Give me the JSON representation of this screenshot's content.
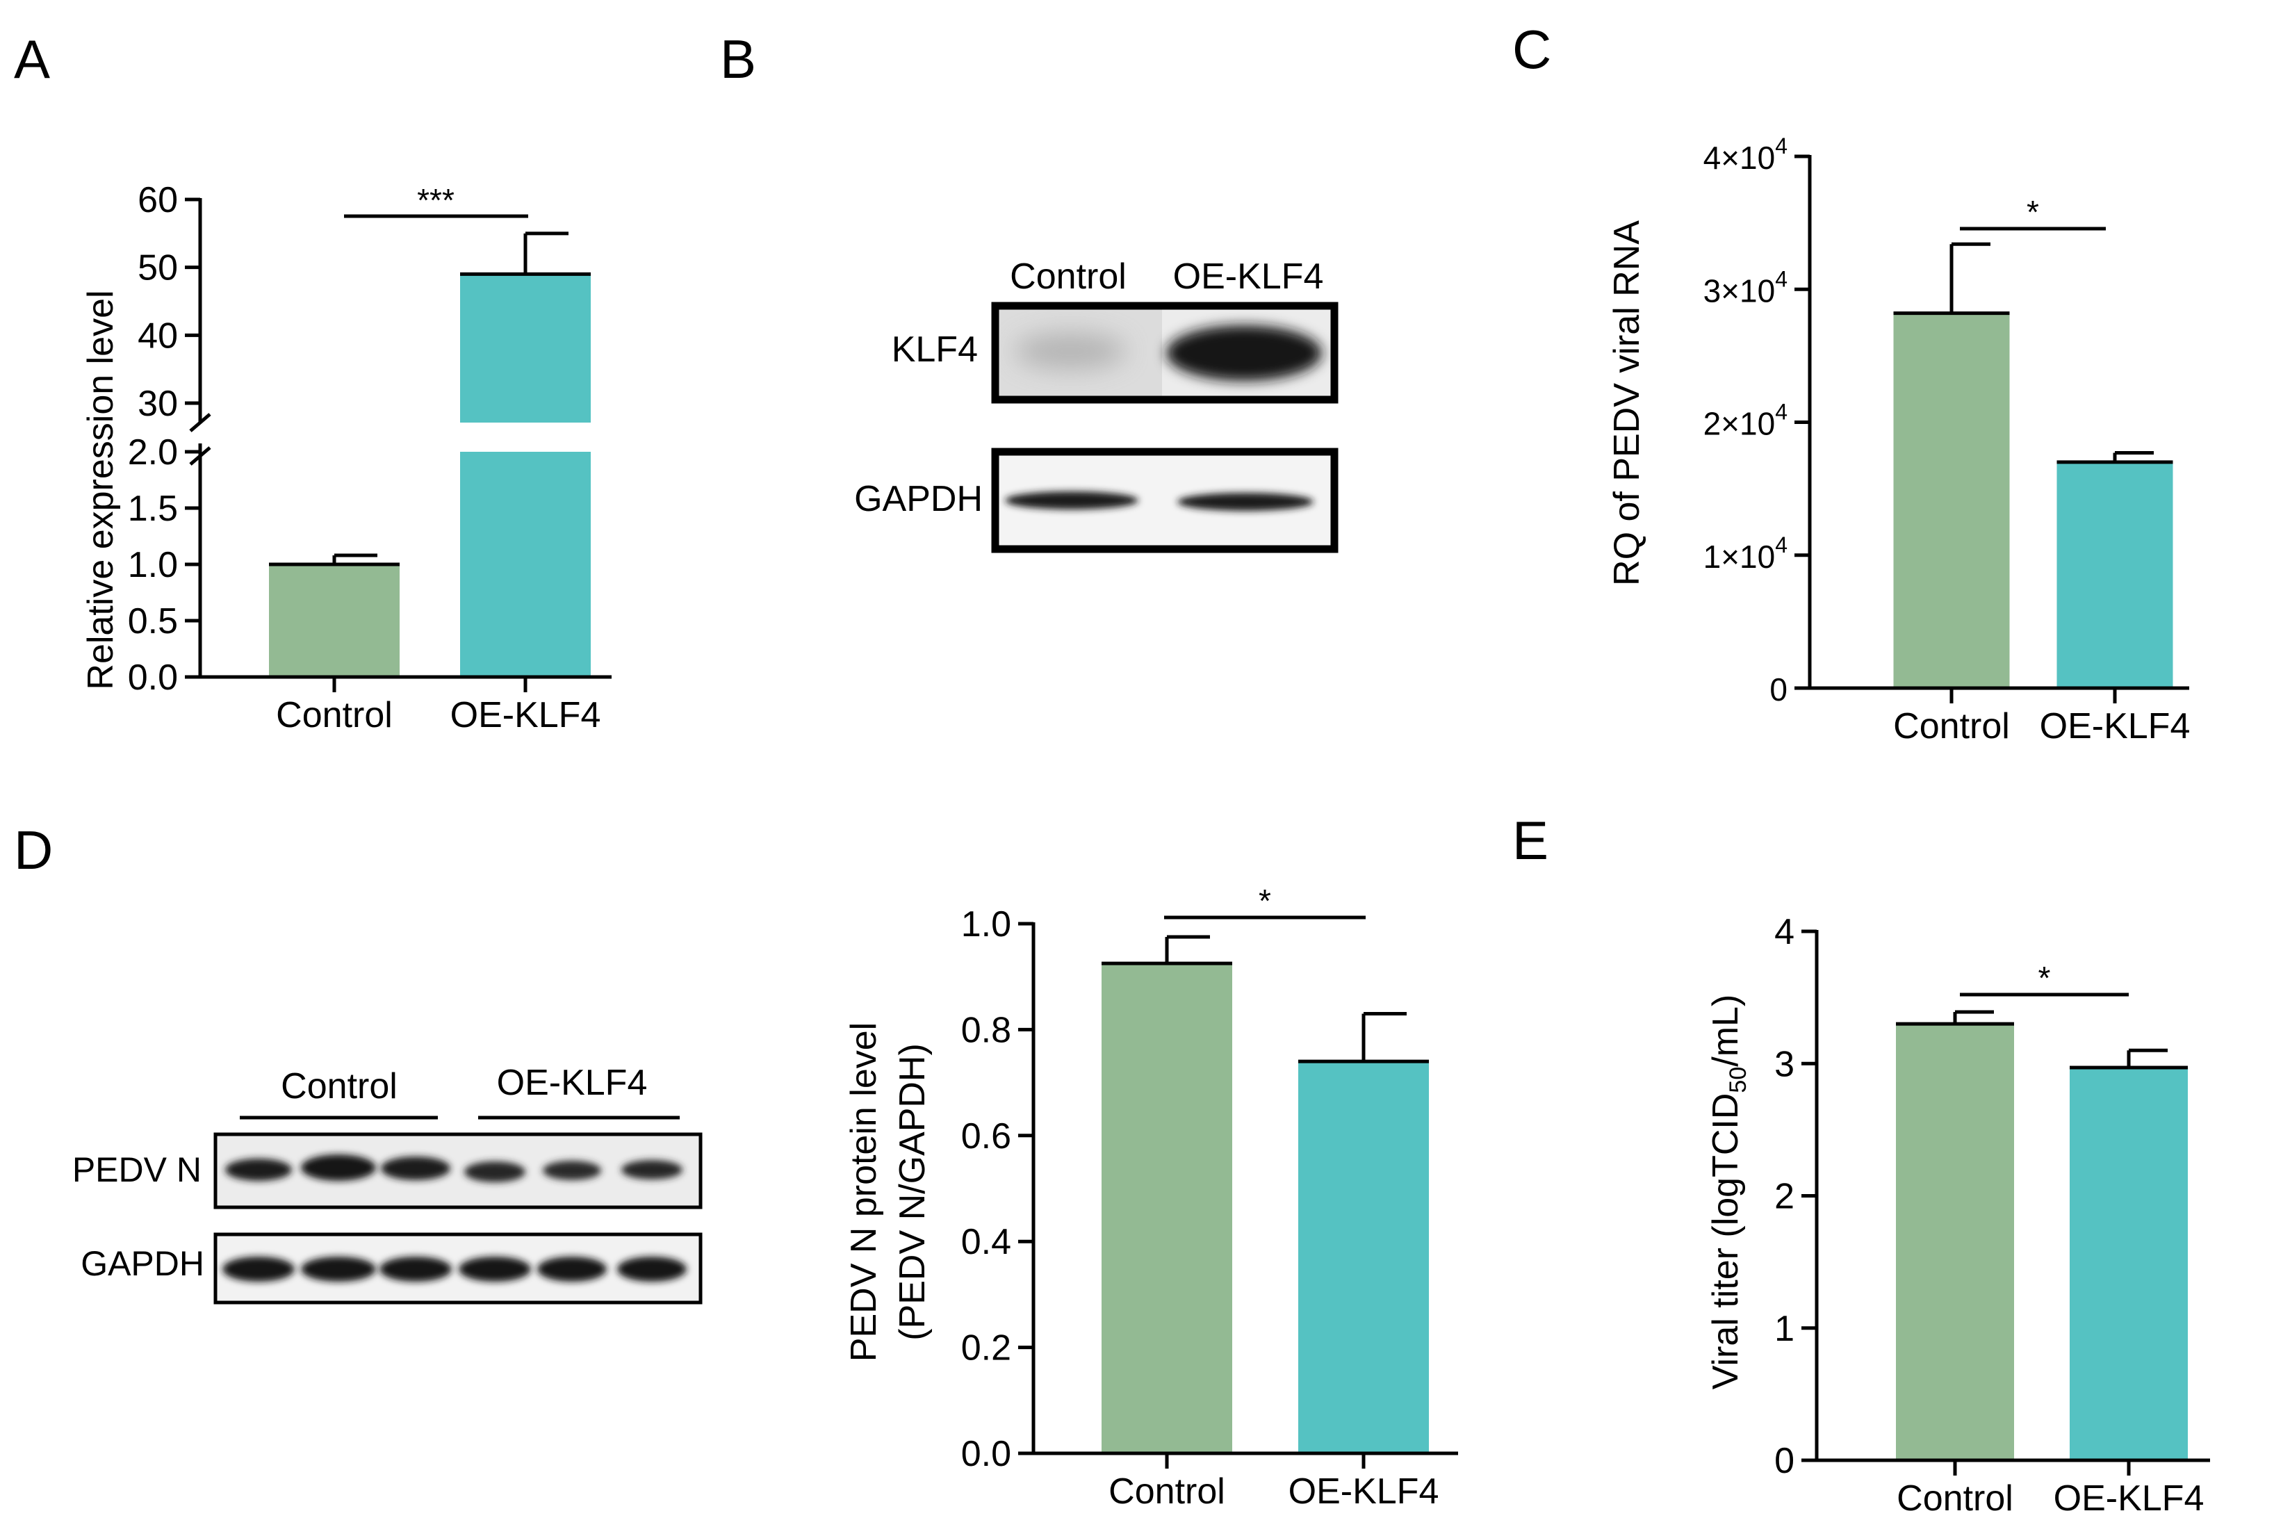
{
  "colors": {
    "control": "#93ba93",
    "oe": "#55c2c2",
    "ink": "#000000"
  },
  "panels": {
    "A": {
      "letter": "A"
    },
    "B": {
      "letter": "B",
      "lanes": [
        "Control",
        "OE-KLF4"
      ],
      "rows": [
        "KLF4",
        "GAPDH"
      ]
    },
    "C": {
      "letter": "C"
    },
    "D": {
      "letter": "D",
      "groups": [
        "Control",
        "OE-KLF4"
      ],
      "rows": [
        "PEDV N",
        "GAPDH"
      ]
    },
    "E": {
      "letter": "E"
    }
  },
  "chart_data": [
    {
      "panel": "A",
      "type": "bar",
      "categories": [
        "Control",
        "OE-KLF4"
      ],
      "values": [
        1.0,
        49
      ],
      "errors": [
        0.08,
        6
      ],
      "ylabel": "Relative expression level",
      "axis_break": {
        "lower": [
          0,
          2.0
        ],
        "upper": [
          30,
          60
        ]
      },
      "lower_ticks": [
        "0.0",
        "0.5",
        "1.0",
        "1.5",
        "2.0"
      ],
      "upper_ticks": [
        "30",
        "40",
        "50",
        "60"
      ],
      "significance": "***"
    },
    {
      "panel": "C",
      "type": "bar",
      "categories": [
        "Control",
        "OE-KLF4"
      ],
      "values": [
        28200,
        17000
      ],
      "errors": [
        5200,
        700
      ],
      "ylabel": "RQ of PEDV viral RNA",
      "ylim": [
        0,
        40000
      ],
      "ticks": [
        {
          "value": 0,
          "mantissa": "0",
          "exp": ""
        },
        {
          "value": 10000,
          "mantissa": "1×10",
          "exp": "4"
        },
        {
          "value": 20000,
          "mantissa": "2×10",
          "exp": "4"
        },
        {
          "value": 30000,
          "mantissa": "3×10",
          "exp": "4"
        },
        {
          "value": 40000,
          "mantissa": "4×10",
          "exp": "4"
        }
      ],
      "significance": "*"
    },
    {
      "panel": "D",
      "type": "bar",
      "categories": [
        "Control",
        "OE-KLF4"
      ],
      "values": [
        0.925,
        0.74
      ],
      "errors": [
        0.05,
        0.09
      ],
      "ylabel_line1": "PEDV N protein level",
      "ylabel_line2": "(PEDV N/GAPDH)",
      "ylim": [
        0,
        1.0
      ],
      "ticks": [
        "0.0",
        "0.2",
        "0.4",
        "0.6",
        "0.8",
        "1.0"
      ],
      "significance": "*"
    },
    {
      "panel": "E",
      "type": "bar",
      "categories": [
        "Control",
        "OE-KLF4"
      ],
      "values": [
        3.3,
        2.97
      ],
      "errors": [
        0.09,
        0.13
      ],
      "ylabel_pre": "Viral titer (logTCID",
      "ylabel_sub": "50",
      "ylabel_post": "/mL)",
      "ylim": [
        0,
        4
      ],
      "ticks": [
        "0",
        "1",
        "2",
        "3",
        "4"
      ],
      "significance": "*"
    }
  ]
}
